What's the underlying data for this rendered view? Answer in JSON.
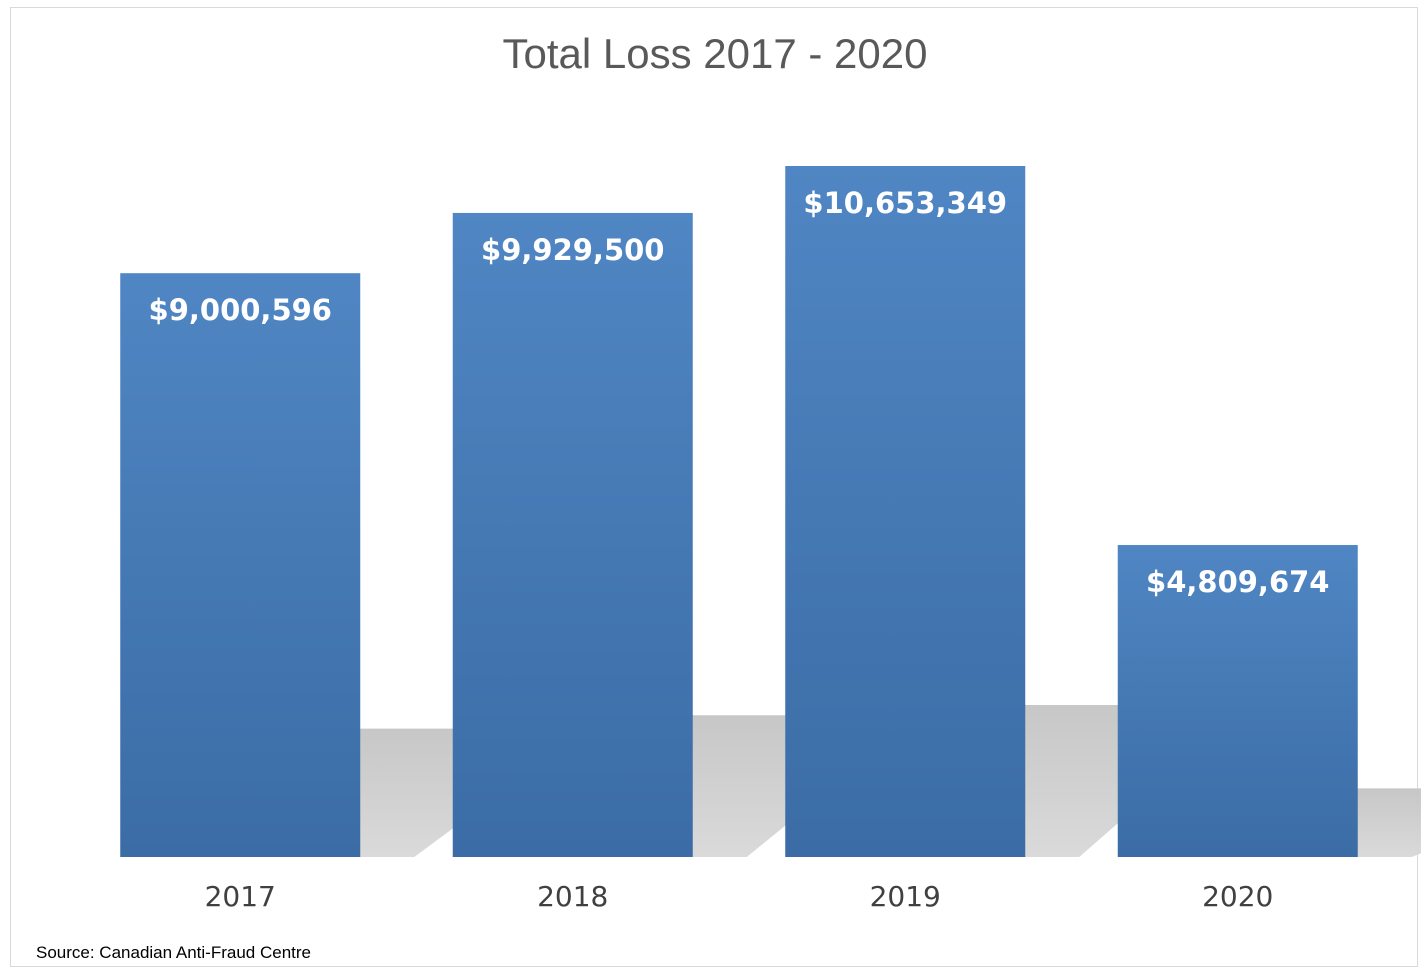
{
  "chart_data": {
    "type": "bar",
    "title": "Total Loss 2017 - 2020",
    "xlabel": "",
    "ylabel": "",
    "categories": [
      "2017",
      "2018",
      "2019",
      "2020"
    ],
    "values": [
      9000596,
      9929500,
      10653349,
      4809674
    ],
    "data_labels": [
      "$9,000,596",
      "$9,929,500",
      "$10,653,349",
      "$4,809,674"
    ],
    "ylim": [
      0,
      12000000
    ],
    "grid": false,
    "legend": "none",
    "bar_color": "#4a7fba",
    "bar_color_dark": "#3a6ba6",
    "label_color": "#ffffff",
    "shadow": true
  },
  "footer": {
    "source": "Source:  Canadian Anti-Fraud Centre"
  }
}
